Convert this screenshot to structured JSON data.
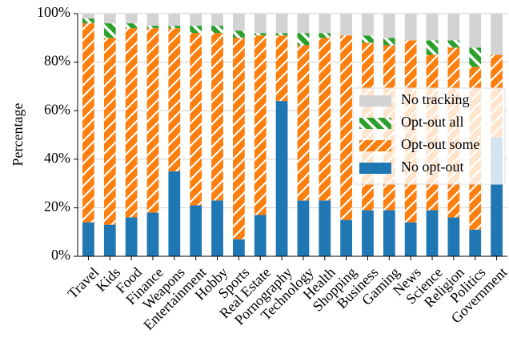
{
  "chart_data": {
    "type": "stacked_bar",
    "ylabel": "Percentage",
    "categories": [
      "Travel",
      "Kids",
      "Food",
      "Finance",
      "Weapons",
      "Entertainment",
      "Hobby",
      "Sports",
      "Real Estate",
      "Pornography",
      "Technology",
      "Health",
      "Shopping",
      "Business",
      "Gaming",
      "News",
      "Science",
      "Religion",
      "Politics",
      "Government"
    ],
    "series": [
      {
        "name": "No opt-out",
        "color": "#1f77b4",
        "values": [
          14,
          13,
          16,
          18,
          35,
          21,
          23,
          7,
          17,
          64,
          23,
          23,
          15,
          19,
          19,
          14,
          19,
          16,
          11,
          49
        ]
      },
      {
        "name": "Opt-out some",
        "color": "#ff7f0e",
        "hatch": "/",
        "values": [
          82,
          77,
          78,
          76,
          59,
          71,
          69,
          83,
          74,
          27,
          64,
          67,
          76,
          69,
          68,
          75,
          64,
          70,
          67,
          34
        ]
      },
      {
        "name": "Opt-out all",
        "color": "#2ca02c",
        "hatch": "\\",
        "values": [
          2,
          6,
          2,
          1,
          1,
          3,
          3,
          3,
          1,
          1,
          5,
          2,
          0,
          3,
          3,
          0,
          6,
          3,
          8,
          0
        ]
      },
      {
        "name": "No tracking",
        "color": "#d3d3d3",
        "values": [
          2,
          4,
          4,
          5,
          5,
          5,
          5,
          7,
          8,
          8,
          8,
          8,
          9,
          9,
          10,
          11,
          11,
          11,
          14,
          17
        ]
      }
    ],
    "ylim": [
      0,
      100
    ],
    "yticks": [
      {
        "value": 0,
        "label": "0%"
      },
      {
        "value": 20,
        "label": "20%"
      },
      {
        "value": 40,
        "label": "40%"
      },
      {
        "value": 60,
        "label": "60%"
      },
      {
        "value": 80,
        "label": "80%"
      },
      {
        "value": 100,
        "label": "100%"
      }
    ],
    "grid": true,
    "legend": "right"
  }
}
